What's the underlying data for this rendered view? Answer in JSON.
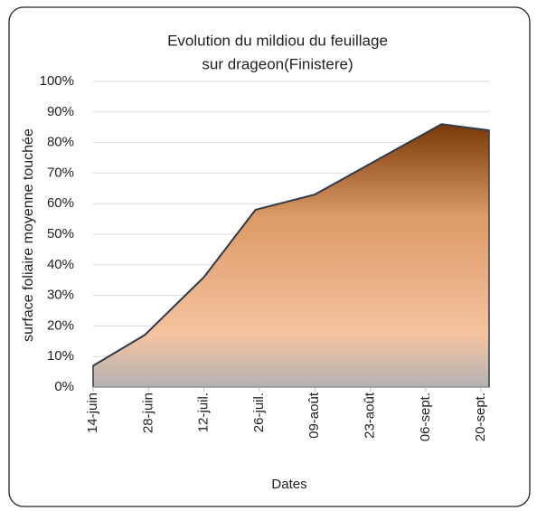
{
  "chart_data": {
    "type": "area",
    "title": [
      "Evolution du mildiou du feuillage",
      "sur drageon(Finistere)"
    ],
    "x_label": "Dates",
    "y_label": "surface foliaire moyenne touchée",
    "x": [
      0,
      13,
      28,
      41,
      56,
      88,
      100
    ],
    "series": [
      {
        "name": "surface foliaire moyenne touchée",
        "color": "#2e3a4e",
        "values": [
          7,
          17,
          36,
          58,
          63,
          86,
          84
        ]
      }
    ],
    "xlim": [
      0,
      100
    ],
    "xticks": [
      {
        "value": 0,
        "label": "14-juin"
      },
      {
        "value": 14,
        "label": "28-juin"
      },
      {
        "value": 28,
        "label": "12-juil."
      },
      {
        "value": 42,
        "label": "26-juil."
      },
      {
        "value": 56,
        "label": "09-août"
      },
      {
        "value": 70,
        "label": "23-août"
      },
      {
        "value": 84,
        "label": "06-sept."
      },
      {
        "value": 98,
        "label": "20-sept."
      }
    ],
    "ylim": [
      0,
      100
    ],
    "yticks": [
      {
        "value": 0,
        "label": "0%"
      },
      {
        "value": 10,
        "label": "10%"
      },
      {
        "value": 20,
        "label": "20%"
      },
      {
        "value": 30,
        "label": "30%"
      },
      {
        "value": 40,
        "label": "40%"
      },
      {
        "value": 50,
        "label": "50%"
      },
      {
        "value": 60,
        "label": "60%"
      },
      {
        "value": 70,
        "label": "70%"
      },
      {
        "value": 80,
        "label": "80%"
      },
      {
        "value": 90,
        "label": "90%"
      },
      {
        "value": 100,
        "label": "100%"
      }
    ],
    "grid": true
  }
}
